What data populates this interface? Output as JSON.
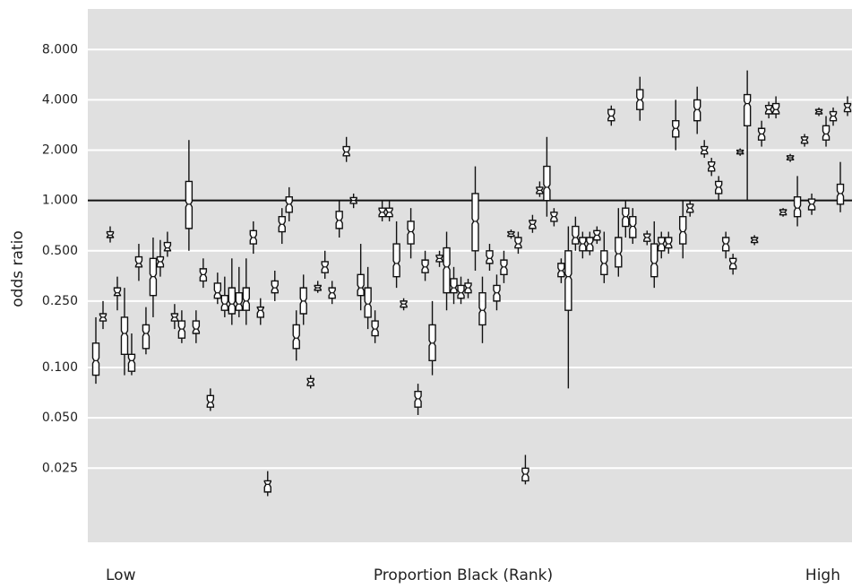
{
  "chart_data": {
    "type": "boxplot",
    "y_label": "odds ratio",
    "x_label": "Proportion Black (Rank)",
    "x_low_label": "Low",
    "x_high_label": "High",
    "log_scale_y": true,
    "grid": true,
    "hline": 1,
    "background": "#e0e0e0",
    "ylim": [
      0.009,
      14
    ],
    "yticks": [
      {
        "value": 0.025,
        "label": "0.025"
      },
      {
        "value": 0.05,
        "label": "0.050"
      },
      {
        "value": 0.1,
        "label": "0.100"
      },
      {
        "value": 0.25,
        "label": "0.250"
      },
      {
        "value": 0.5,
        "label": "0.500"
      },
      {
        "value": 1,
        "label": "1.000"
      },
      {
        "value": 2,
        "label": "2.000"
      },
      {
        "value": 4,
        "label": "4.000"
      },
      {
        "value": 8,
        "label": "8.000"
      }
    ],
    "boxes": [
      [
        0.08,
        0.09,
        0.11,
        0.14,
        0.2
      ],
      [
        0.17,
        0.19,
        0.2,
        0.21,
        0.25
      ],
      [
        0.56,
        0.6,
        0.62,
        0.65,
        0.7
      ],
      [
        0.22,
        0.27,
        0.28,
        0.3,
        0.35
      ],
      [
        0.09,
        0.12,
        0.16,
        0.2,
        0.3
      ],
      [
        0.09,
        0.095,
        0.11,
        0.12,
        0.16
      ],
      [
        0.33,
        0.4,
        0.42,
        0.46,
        0.55
      ],
      [
        0.12,
        0.13,
        0.16,
        0.18,
        0.23
      ],
      [
        0.2,
        0.27,
        0.35,
        0.45,
        0.6
      ],
      [
        0.35,
        0.4,
        0.43,
        0.46,
        0.58
      ],
      [
        0.46,
        0.5,
        0.52,
        0.56,
        0.65
      ],
      [
        0.17,
        0.19,
        0.2,
        0.21,
        0.24
      ],
      [
        0.14,
        0.15,
        0.17,
        0.19,
        0.22
      ],
      [
        0.5,
        0.68,
        0.95,
        1.3,
        2.3
      ],
      [
        0.14,
        0.16,
        0.17,
        0.19,
        0.22
      ],
      [
        0.3,
        0.33,
        0.36,
        0.39,
        0.45
      ],
      [
        0.055,
        0.058,
        0.062,
        0.068,
        0.075
      ],
      [
        0.24,
        0.26,
        0.28,
        0.32,
        0.37
      ],
      [
        0.2,
        0.22,
        0.24,
        0.27,
        0.35
      ],
      [
        0.18,
        0.21,
        0.24,
        0.3,
        0.45
      ],
      [
        0.2,
        0.22,
        0.24,
        0.28,
        0.4
      ],
      [
        0.18,
        0.22,
        0.25,
        0.3,
        0.45
      ],
      [
        0.48,
        0.55,
        0.6,
        0.66,
        0.75
      ],
      [
        0.18,
        0.2,
        0.22,
        0.23,
        0.26
      ],
      [
        0.017,
        0.018,
        0.02,
        0.021,
        0.024
      ],
      [
        0.25,
        0.28,
        0.3,
        0.33,
        0.38
      ],
      [
        0.55,
        0.65,
        0.72,
        0.8,
        0.9
      ],
      [
        0.75,
        0.85,
        0.95,
        1.05,
        1.2
      ],
      [
        0.11,
        0.13,
        0.15,
        0.18,
        0.22
      ],
      [
        0.18,
        0.21,
        0.25,
        0.3,
        0.36
      ],
      [
        0.075,
        0.078,
        0.082,
        0.086,
        0.09
      ],
      [
        0.28,
        0.29,
        0.3,
        0.31,
        0.33
      ],
      [
        0.34,
        0.37,
        0.4,
        0.43,
        0.5
      ],
      [
        0.24,
        0.26,
        0.28,
        0.3,
        0.33
      ],
      [
        0.6,
        0.68,
        0.76,
        0.86,
        1.0
      ],
      [
        1.7,
        1.85,
        1.95,
        2.1,
        2.4
      ],
      [
        0.9,
        0.96,
        1.0,
        1.04,
        1.1
      ],
      [
        0.22,
        0.27,
        0.3,
        0.36,
        0.55
      ],
      [
        0.17,
        0.2,
        0.24,
        0.3,
        0.4
      ],
      [
        0.14,
        0.155,
        0.17,
        0.19,
        0.22
      ],
      [
        0.75,
        0.8,
        0.85,
        0.9,
        1.0
      ],
      [
        0.75,
        0.8,
        0.85,
        0.9,
        1.0
      ],
      [
        0.3,
        0.35,
        0.42,
        0.55,
        0.75
      ],
      [
        0.22,
        0.23,
        0.24,
        0.25,
        0.26
      ],
      [
        0.45,
        0.55,
        0.65,
        0.75,
        0.9
      ],
      [
        0.052,
        0.058,
        0.065,
        0.072,
        0.08
      ],
      [
        0.33,
        0.37,
        0.4,
        0.44,
        0.5
      ],
      [
        0.09,
        0.11,
        0.14,
        0.18,
        0.25
      ],
      [
        0.4,
        0.43,
        0.45,
        0.47,
        0.5
      ],
      [
        0.22,
        0.28,
        0.4,
        0.52,
        0.65
      ],
      [
        0.24,
        0.28,
        0.3,
        0.34,
        0.4
      ],
      [
        0.24,
        0.26,
        0.28,
        0.31,
        0.35
      ],
      [
        0.26,
        0.28,
        0.3,
        0.32,
        0.34
      ],
      [
        0.38,
        0.5,
        0.75,
        1.1,
        1.6
      ],
      [
        0.14,
        0.18,
        0.22,
        0.28,
        0.35
      ],
      [
        0.38,
        0.42,
        0.45,
        0.5,
        0.55
      ],
      [
        0.22,
        0.25,
        0.28,
        0.31,
        0.36
      ],
      [
        0.32,
        0.36,
        0.4,
        0.44,
        0.5
      ],
      [
        0.59,
        0.61,
        0.63,
        0.65,
        0.67
      ],
      [
        0.48,
        0.52,
        0.55,
        0.6,
        0.65
      ],
      [
        0.02,
        0.021,
        0.023,
        0.025,
        0.03
      ],
      [
        0.64,
        0.68,
        0.72,
        0.76,
        0.82
      ],
      [
        1.05,
        1.1,
        1.15,
        1.2,
        1.3
      ],
      [
        0.8,
        1.0,
        1.2,
        1.6,
        2.4
      ],
      [
        0.7,
        0.75,
        0.8,
        0.85,
        0.9
      ],
      [
        0.32,
        0.35,
        0.38,
        0.42,
        0.45
      ],
      [
        0.075,
        0.22,
        0.35,
        0.5,
        0.7
      ],
      [
        0.5,
        0.55,
        0.6,
        0.7,
        0.8
      ],
      [
        0.45,
        0.5,
        0.55,
        0.6,
        0.65
      ],
      [
        0.47,
        0.5,
        0.55,
        0.6,
        0.65
      ],
      [
        0.55,
        0.58,
        0.62,
        0.66,
        0.7
      ],
      [
        0.32,
        0.36,
        0.42,
        0.5,
        0.65
      ],
      [
        2.8,
        3.0,
        3.2,
        3.5,
        3.7
      ],
      [
        0.35,
        0.4,
        0.48,
        0.6,
        0.9
      ],
      [
        0.6,
        0.7,
        0.8,
        0.9,
        1.0
      ],
      [
        0.55,
        0.6,
        0.7,
        0.8,
        0.9
      ],
      [
        3.0,
        3.5,
        4.0,
        4.6,
        5.5
      ],
      [
        0.54,
        0.57,
        0.6,
        0.63,
        0.66
      ],
      [
        0.3,
        0.35,
        0.42,
        0.55,
        0.75
      ],
      [
        0.45,
        0.5,
        0.55,
        0.6,
        0.65
      ],
      [
        0.48,
        0.52,
        0.55,
        0.6,
        0.65
      ],
      [
        2.0,
        2.4,
        2.7,
        3.0,
        4.0
      ],
      [
        0.45,
        0.55,
        0.65,
        0.8,
        1.0
      ],
      [
        0.8,
        0.85,
        0.9,
        0.95,
        1.0
      ],
      [
        2.5,
        3.0,
        3.5,
        4.0,
        4.8
      ],
      [
        1.8,
        1.9,
        2.0,
        2.1,
        2.3
      ],
      [
        1.4,
        1.5,
        1.6,
        1.7,
        1.8
      ],
      [
        1.0,
        1.1,
        1.2,
        1.3,
        1.4
      ],
      [
        0.45,
        0.5,
        0.55,
        0.6,
        0.65
      ],
      [
        0.36,
        0.39,
        0.42,
        0.45,
        0.48
      ],
      [
        1.85,
        1.9,
        1.95,
        2.0,
        2.05
      ],
      [
        1.0,
        2.8,
        3.8,
        4.3,
        6.0
      ],
      [
        0.54,
        0.56,
        0.58,
        0.6,
        0.62
      ],
      [
        2.1,
        2.3,
        2.5,
        2.7,
        3.0
      ],
      [
        3.1,
        3.3,
        3.5,
        3.7,
        3.9
      ],
      [
        3.1,
        3.3,
        3.5,
        3.8,
        4.2
      ],
      [
        0.8,
        0.82,
        0.85,
        0.88,
        0.9
      ],
      [
        1.7,
        1.75,
        1.8,
        1.85,
        1.9
      ],
      [
        0.7,
        0.8,
        0.9,
        1.05,
        1.4
      ],
      [
        2.1,
        2.2,
        2.3,
        2.4,
        2.5
      ],
      [
        0.82,
        0.88,
        0.95,
        1.02,
        1.1
      ],
      [
        3.2,
        3.3,
        3.4,
        3.5,
        3.6
      ],
      [
        2.1,
        2.3,
        2.5,
        2.8,
        3.2
      ],
      [
        2.8,
        3.0,
        3.2,
        3.4,
        3.6
      ],
      [
        0.85,
        0.95,
        1.1,
        1.25,
        1.7
      ],
      [
        3.2,
        3.4,
        3.6,
        3.8,
        4.2
      ]
    ]
  }
}
